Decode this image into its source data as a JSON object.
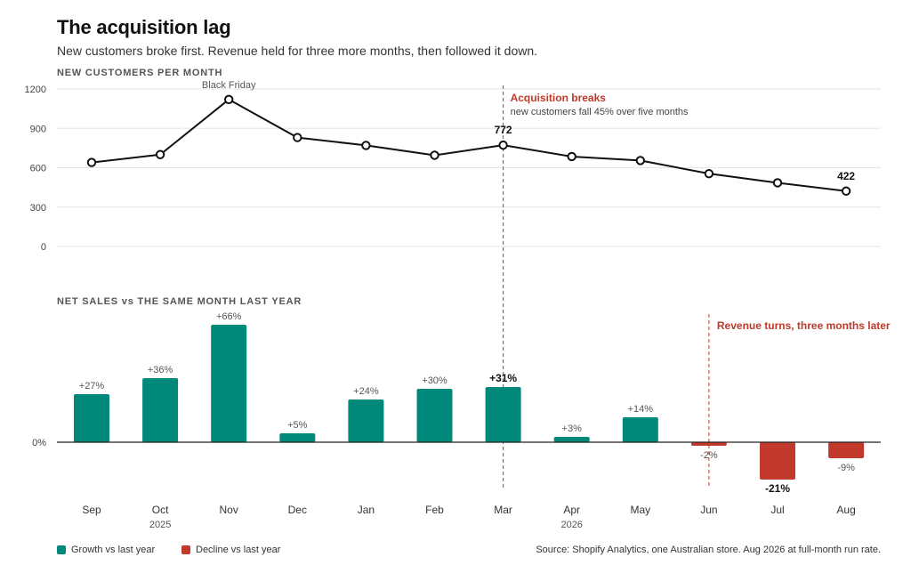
{
  "header": {
    "title": "The acquisition lag",
    "subtitle": "New customers broke first. Revenue held for three more months, then followed it down."
  },
  "colors": {
    "growth": "#00897b",
    "decline": "#c0392b",
    "line": "#111111",
    "annotation": "#c0392b",
    "grid": "#e5e5e5"
  },
  "chart_data": [
    {
      "type": "line",
      "panel_label": "NEW CUSTOMERS PER MONTH",
      "categories": [
        "Sep",
        "Oct",
        "Nov",
        "Dec",
        "Jan",
        "Feb",
        "Mar",
        "Apr",
        "May",
        "Jun",
        "Jul",
        "Aug"
      ],
      "years": [
        {
          "label": "2025",
          "under": "Oct"
        },
        {
          "label": "2026",
          "under": "Apr"
        }
      ],
      "values": [
        640,
        700,
        1120,
        830,
        770,
        695,
        772,
        685,
        655,
        555,
        485,
        422
      ],
      "ylim": [
        0,
        1200
      ],
      "yticks": [
        0,
        300,
        600,
        900,
        1200
      ],
      "grid": true,
      "point_labels": [
        {
          "category": "Nov",
          "text": "Black Friday",
          "style": "muted"
        },
        {
          "category": "Mar",
          "text": "772",
          "style": "strong"
        },
        {
          "category": "Aug",
          "text": "422",
          "style": "strong"
        }
      ],
      "annotation": {
        "at": "Mar",
        "title": "Acquisition breaks",
        "text": "new customers fall 45% over five months"
      }
    },
    {
      "type": "bar",
      "panel_label": "NET SALES vs THE SAME MONTH LAST YEAR",
      "categories": [
        "Sep",
        "Oct",
        "Nov",
        "Dec",
        "Jan",
        "Feb",
        "Mar",
        "Apr",
        "May",
        "Jun",
        "Jul",
        "Aug"
      ],
      "values": [
        27,
        36,
        66,
        5,
        24,
        30,
        31,
        3,
        14,
        -2,
        -21,
        -9
      ],
      "labels": [
        "+27%",
        "+36%",
        "+66%",
        "+5%",
        "+24%",
        "+30%",
        "+31%",
        "+3%",
        "+14%",
        "-2%",
        "-21%",
        "-9%"
      ],
      "strong_labels": [
        "Mar",
        "Jul"
      ],
      "zero_label": "0%",
      "annotation": {
        "at": "Jun",
        "title": "Revenue turns, three months later"
      }
    }
  ],
  "legend": [
    {
      "label": "Growth vs last year",
      "color": "#00897b"
    },
    {
      "label": "Decline vs last year",
      "color": "#c0392b"
    }
  ],
  "source": "Source: Shopify Analytics, one Australian store. Aug 2026 at full-month run rate."
}
